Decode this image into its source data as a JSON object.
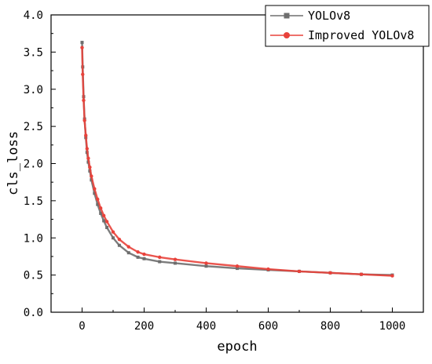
{
  "chart_data": {
    "type": "line",
    "xlabel": "epoch",
    "ylabel": "cls_loss",
    "xlim": [
      -100,
      1100
    ],
    "ylim": [
      0,
      4
    ],
    "x_ticks": [
      0,
      200,
      400,
      600,
      800,
      1000
    ],
    "x_tick_labels": [
      "0",
      "200",
      "400",
      "600",
      "800",
      "1000"
    ],
    "y_ticks": [
      0,
      0.5,
      1,
      1.5,
      2,
      2.5,
      3,
      3.5,
      4
    ],
    "y_tick_labels": [
      "0.0",
      "0.5",
      "1.0",
      "1.5",
      "2.0",
      "2.5",
      "3.0",
      "3.5",
      "4.0"
    ],
    "grid": false,
    "legend_position": "top-right",
    "series": [
      {
        "name": "YOLOv8",
        "color": "#6e6e6e",
        "marker": "square",
        "x": [
          0,
          2,
          5,
          8,
          12,
          16,
          20,
          25,
          30,
          40,
          50,
          60,
          70,
          80,
          100,
          120,
          150,
          180,
          200,
          250,
          300,
          400,
          500,
          600,
          700,
          800,
          900,
          1000
        ],
        "y": [
          3.63,
          3.3,
          2.9,
          2.6,
          2.35,
          2.15,
          2.02,
          1.9,
          1.78,
          1.6,
          1.45,
          1.33,
          1.23,
          1.14,
          1.0,
          0.9,
          0.8,
          0.74,
          0.72,
          0.68,
          0.66,
          0.62,
          0.59,
          0.57,
          0.55,
          0.53,
          0.51,
          0.5
        ]
      },
      {
        "name": "Improved YOLOv8",
        "color": "#e8423b",
        "marker": "circle",
        "x": [
          0,
          2,
          5,
          8,
          12,
          16,
          20,
          25,
          30,
          40,
          50,
          60,
          70,
          80,
          100,
          120,
          150,
          180,
          200,
          250,
          300,
          400,
          500,
          600,
          700,
          800,
          900,
          1000
        ],
        "y": [
          3.56,
          3.2,
          2.85,
          2.58,
          2.38,
          2.2,
          2.07,
          1.95,
          1.83,
          1.66,
          1.52,
          1.4,
          1.3,
          1.22,
          1.08,
          0.98,
          0.88,
          0.81,
          0.78,
          0.74,
          0.71,
          0.66,
          0.62,
          0.58,
          0.55,
          0.53,
          0.51,
          0.49
        ]
      }
    ]
  }
}
